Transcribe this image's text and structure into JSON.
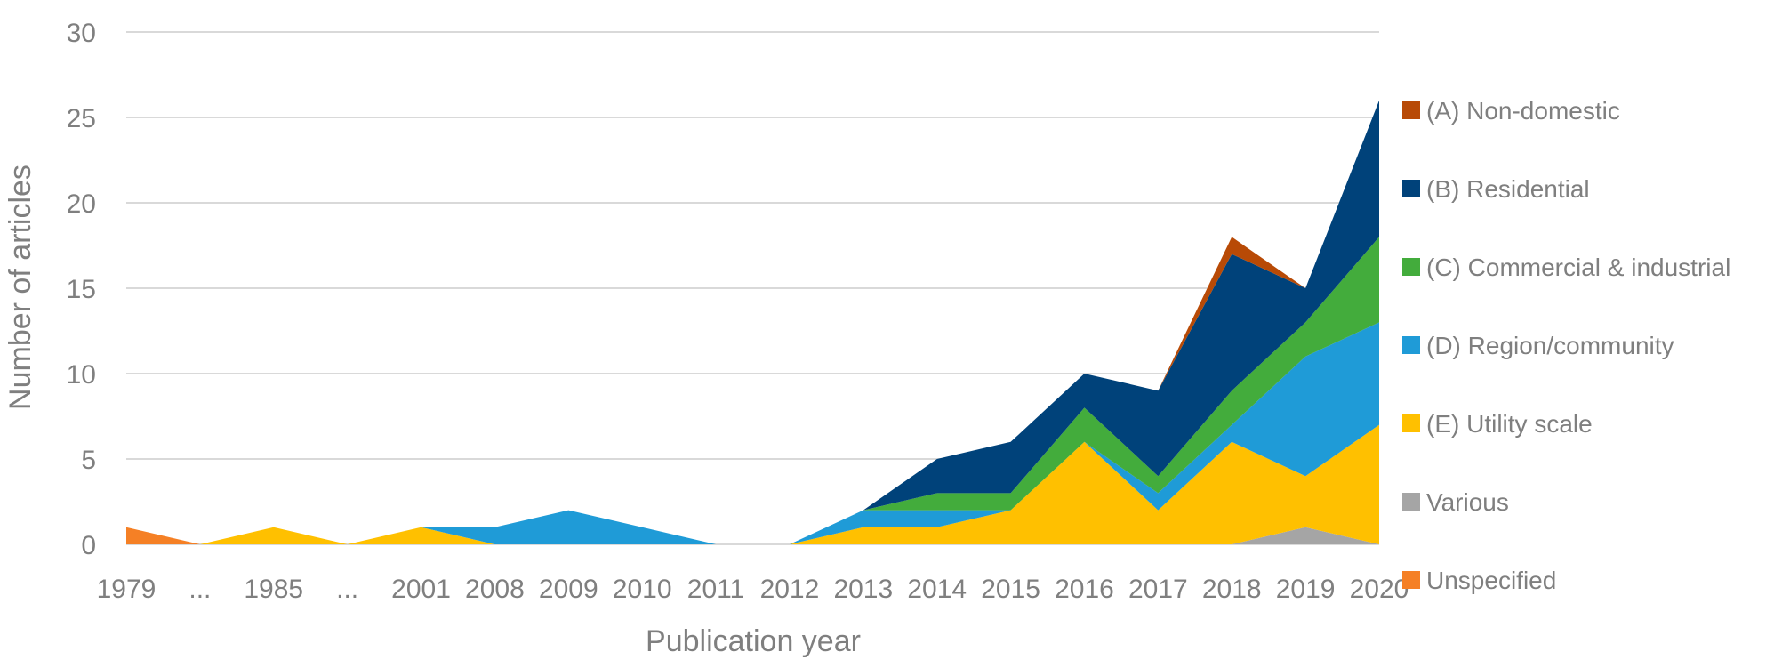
{
  "chart_data": {
    "type": "area",
    "stacked": true,
    "categories": [
      "1979",
      "...",
      "1985",
      "...",
      "2001",
      "2008",
      "2009",
      "2010",
      "2011",
      "2012",
      "2013",
      "2014",
      "2015",
      "2016",
      "2017",
      "2018",
      "2019",
      "2020"
    ],
    "xlabel": "Publication year",
    "ylabel": "Number of articles",
    "ylim": [
      0,
      30
    ],
    "yticks": [
      0,
      5,
      10,
      15,
      20,
      25,
      30
    ],
    "grid": true,
    "legend_position": "right",
    "series": [
      {
        "name": "Unspecified",
        "color": "#f58025",
        "values": [
          1,
          0,
          0,
          0,
          0,
          0,
          0,
          0,
          0,
          0,
          0,
          0,
          0,
          0,
          0,
          0,
          0,
          0
        ]
      },
      {
        "name": "Various",
        "color": "#a5a5a5",
        "values": [
          0,
          0,
          0,
          0,
          0,
          0,
          0,
          0,
          0,
          0,
          0,
          0,
          0,
          0,
          0,
          0,
          1,
          0
        ]
      },
      {
        "name": "(E) Utility scale",
        "color": "#ffc000",
        "values": [
          0,
          0,
          1,
          0,
          1,
          0,
          0,
          0,
          0,
          0,
          1,
          1,
          2,
          6,
          2,
          6,
          3,
          7
        ]
      },
      {
        "name": "(D) Region/community",
        "color": "#1f9bd7",
        "values": [
          0,
          0,
          0,
          0,
          0,
          1,
          2,
          1,
          0,
          0,
          1,
          1,
          0,
          0,
          1,
          1,
          7,
          6
        ]
      },
      {
        "name": "(C) Commercial & industrial",
        "color": "#43ac3c",
        "values": [
          0,
          0,
          0,
          0,
          0,
          0,
          0,
          0,
          0,
          0,
          0,
          1,
          1,
          2,
          1,
          2,
          2,
          5
        ]
      },
      {
        "name": "(B) Residential",
        "color": "#00427a",
        "values": [
          0,
          0,
          0,
          0,
          0,
          0,
          0,
          0,
          0,
          0,
          0,
          2,
          3,
          2,
          5,
          8,
          2,
          8
        ]
      },
      {
        "name": "(A) Non-domestic",
        "color": "#b84a06",
        "values": [
          0,
          0,
          0,
          0,
          0,
          0,
          0,
          0,
          0,
          0,
          0,
          0,
          0,
          0,
          0,
          1,
          0,
          0
        ]
      }
    ],
    "legend_order": [
      "(A) Non-domestic",
      "(B) Residential",
      "(C) Commercial & industrial",
      "(D) Region/community",
      "(E) Utility scale",
      "Various",
      "Unspecified"
    ]
  }
}
